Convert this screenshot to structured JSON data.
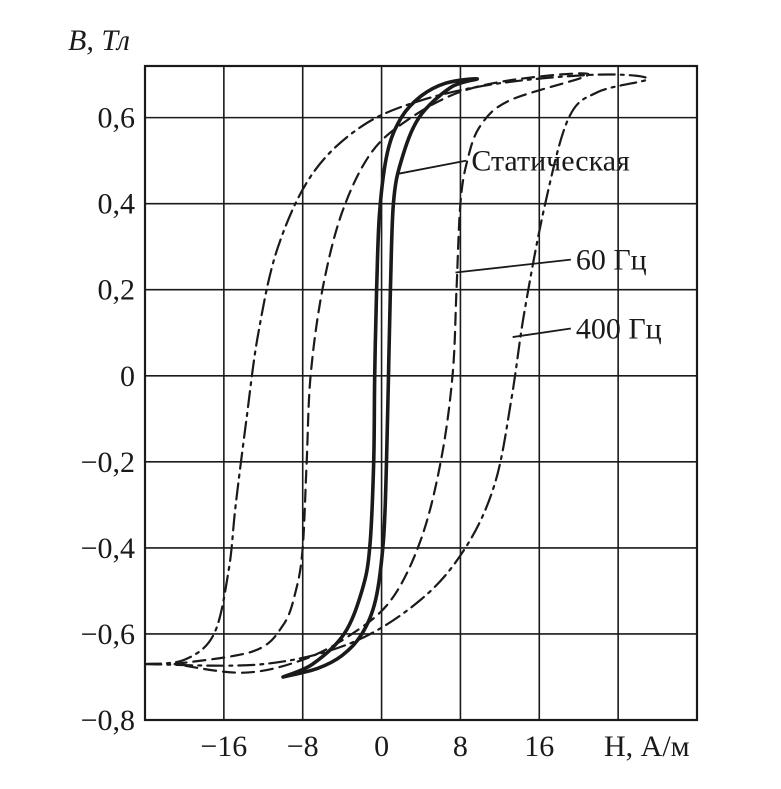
{
  "chart_data": {
    "type": "line",
    "title": "",
    "xlabel": "H, А/м",
    "ylabel": "B, Тл",
    "xlim": [
      -24,
      32
    ],
    "ylim": [
      -0.8,
      0.72
    ],
    "x_ticks": [
      -16,
      -8,
      0,
      8,
      16
    ],
    "x_tick_labels": [
      "−16",
      "−8",
      "0",
      "8",
      "16"
    ],
    "y_ticks": [
      0.6,
      0.4,
      0.2,
      0,
      -0.2,
      -0.4,
      -0.6,
      -0.8
    ],
    "y_tick_labels": [
      "0,6",
      "0,4",
      "0,2",
      "0",
      "−0,2",
      "−0,4",
      "−0,6",
      "−0,8"
    ],
    "x_grid": [
      -16,
      -8,
      0,
      8,
      16,
      24
    ],
    "y_grid": [
      0.6,
      0.4,
      0.2,
      0,
      -0.2,
      -0.4,
      -0.6
    ],
    "grid": true,
    "series": [
      {
        "name": "Статическая",
        "style": "solid",
        "values": [
          [
            -10.0,
            -0.7
          ],
          [
            -7.0,
            -0.67
          ],
          [
            -3.8,
            -0.6
          ],
          [
            -2.0,
            -0.5
          ],
          [
            -1.2,
            -0.4
          ],
          [
            -0.8,
            -0.2
          ],
          [
            -0.7,
            0.0
          ],
          [
            -0.5,
            0.2
          ],
          [
            -0.2,
            0.38
          ],
          [
            0.6,
            0.52
          ],
          [
            2.0,
            0.6
          ],
          [
            4.0,
            0.65
          ],
          [
            6.5,
            0.68
          ],
          [
            9.7,
            0.69
          ],
          [
            7.0,
            0.67
          ],
          [
            3.8,
            0.6
          ],
          [
            2.0,
            0.5
          ],
          [
            1.2,
            0.4
          ],
          [
            0.9,
            0.2
          ],
          [
            0.7,
            0.0
          ],
          [
            0.5,
            -0.2
          ],
          [
            0.2,
            -0.38
          ],
          [
            -0.6,
            -0.52
          ],
          [
            -2.0,
            -0.6
          ],
          [
            -4.0,
            -0.65
          ],
          [
            -6.5,
            -0.68
          ],
          [
            -10.0,
            -0.7
          ]
        ]
      },
      {
        "name": "60 Гц",
        "style": "dashed",
        "values": [
          [
            -21.0,
            -0.67
          ],
          [
            -13.0,
            -0.64
          ],
          [
            -10.0,
            -0.58
          ],
          [
            -8.7,
            -0.5
          ],
          [
            -8.0,
            -0.4
          ],
          [
            -7.6,
            -0.2
          ],
          [
            -7.2,
            0.0
          ],
          [
            -6.0,
            0.2
          ],
          [
            -4.0,
            0.38
          ],
          [
            -1.0,
            0.52
          ],
          [
            3.0,
            0.6
          ],
          [
            8.0,
            0.66
          ],
          [
            14.0,
            0.69
          ],
          [
            21.0,
            0.7
          ],
          [
            13.0,
            0.64
          ],
          [
            10.0,
            0.58
          ],
          [
            8.7,
            0.5
          ],
          [
            8.0,
            0.4
          ],
          [
            7.6,
            0.2
          ],
          [
            7.2,
            0.0
          ],
          [
            6.0,
            -0.2
          ],
          [
            4.0,
            -0.38
          ],
          [
            1.0,
            -0.52
          ],
          [
            -3.0,
            -0.6
          ],
          [
            -8.0,
            -0.66
          ],
          [
            -14.0,
            -0.69
          ],
          [
            -21.0,
            -0.67
          ]
        ]
      },
      {
        "name": "400 Гц",
        "style": "dashdot",
        "values": [
          [
            -24.0,
            -0.67
          ],
          [
            -20.0,
            -0.66
          ],
          [
            -17.0,
            -0.6
          ],
          [
            -15.5,
            -0.45
          ],
          [
            -14.8,
            -0.3
          ],
          [
            -13.7,
            -0.1
          ],
          [
            -12.5,
            0.1
          ],
          [
            -10.5,
            0.3
          ],
          [
            -7.0,
            0.47
          ],
          [
            -2.0,
            0.58
          ],
          [
            4.0,
            0.64
          ],
          [
            12.0,
            0.68
          ],
          [
            22.0,
            0.7
          ],
          [
            27.0,
            0.69
          ],
          [
            22.0,
            0.66
          ],
          [
            19.0,
            0.6
          ],
          [
            16.6,
            0.4
          ],
          [
            14.5,
            0.15
          ],
          [
            13.2,
            -0.05
          ],
          [
            11.5,
            -0.25
          ],
          [
            8.5,
            -0.4
          ],
          [
            4.0,
            -0.52
          ],
          [
            -3.0,
            -0.62
          ],
          [
            -12.0,
            -0.67
          ],
          [
            -24.0,
            -0.67
          ]
        ]
      }
    ],
    "annotations": [
      {
        "text": "Статическая",
        "target": [
          1.8,
          0.47
        ],
        "anchor": [
          8.6,
          0.5
        ]
      },
      {
        "text": "60 Гц",
        "target": [
          7.5,
          0.24
        ],
        "anchor": [
          19.2,
          0.27
        ]
      },
      {
        "text": "400 Гц",
        "target": [
          13.3,
          0.09
        ],
        "anchor": [
          19.2,
          0.11
        ]
      }
    ]
  }
}
